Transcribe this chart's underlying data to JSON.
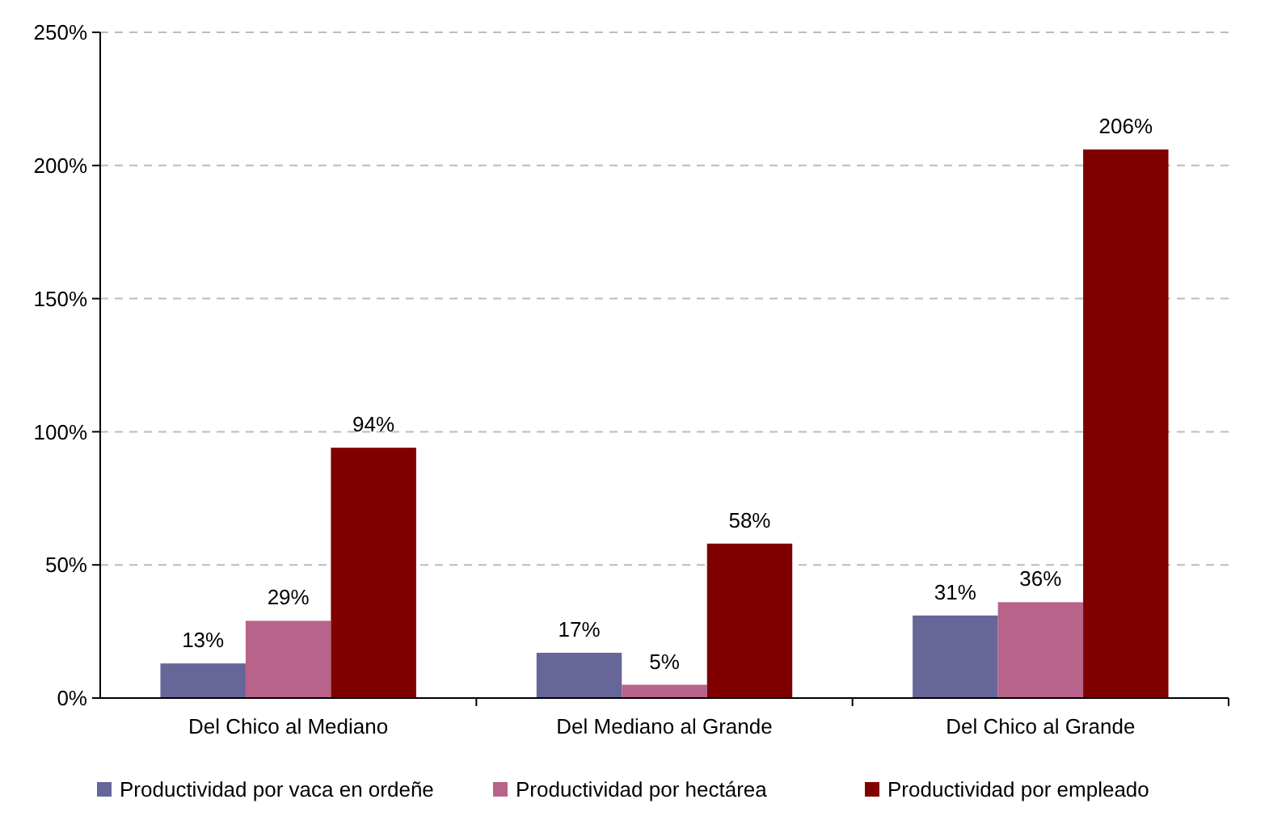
{
  "chart_data": {
    "type": "bar",
    "categories": [
      "Del Chico al Mediano",
      "Del Mediano al Grande",
      "Del Chico al Grande"
    ],
    "series": [
      {
        "name": "Productividad por vaca en ordeñe",
        "color": "#666699",
        "values": [
          13,
          17,
          31
        ],
        "value_labels": [
          "13%",
          "17%",
          "31%"
        ]
      },
      {
        "name": "Productividad por hectárea",
        "color": "#b8638a",
        "values": [
          29,
          5,
          36
        ],
        "value_labels": [
          "29%",
          "5%",
          "36%"
        ]
      },
      {
        "name": "Productividad por empleado",
        "color": "#800000",
        "values": [
          94,
          58,
          206
        ],
        "value_labels": [
          "94%",
          "58%",
          "206%"
        ]
      }
    ],
    "ylim": [
      0,
      250
    ],
    "yticks": [
      {
        "value": 0,
        "label": "0%"
      },
      {
        "value": 50,
        "label": "50%"
      },
      {
        "value": 100,
        "label": "100%"
      },
      {
        "value": 150,
        "label": "150%"
      },
      {
        "value": 200,
        "label": "200%"
      },
      {
        "value": 250,
        "label": "250%"
      }
    ],
    "grid": "y",
    "legend": "bottom"
  }
}
